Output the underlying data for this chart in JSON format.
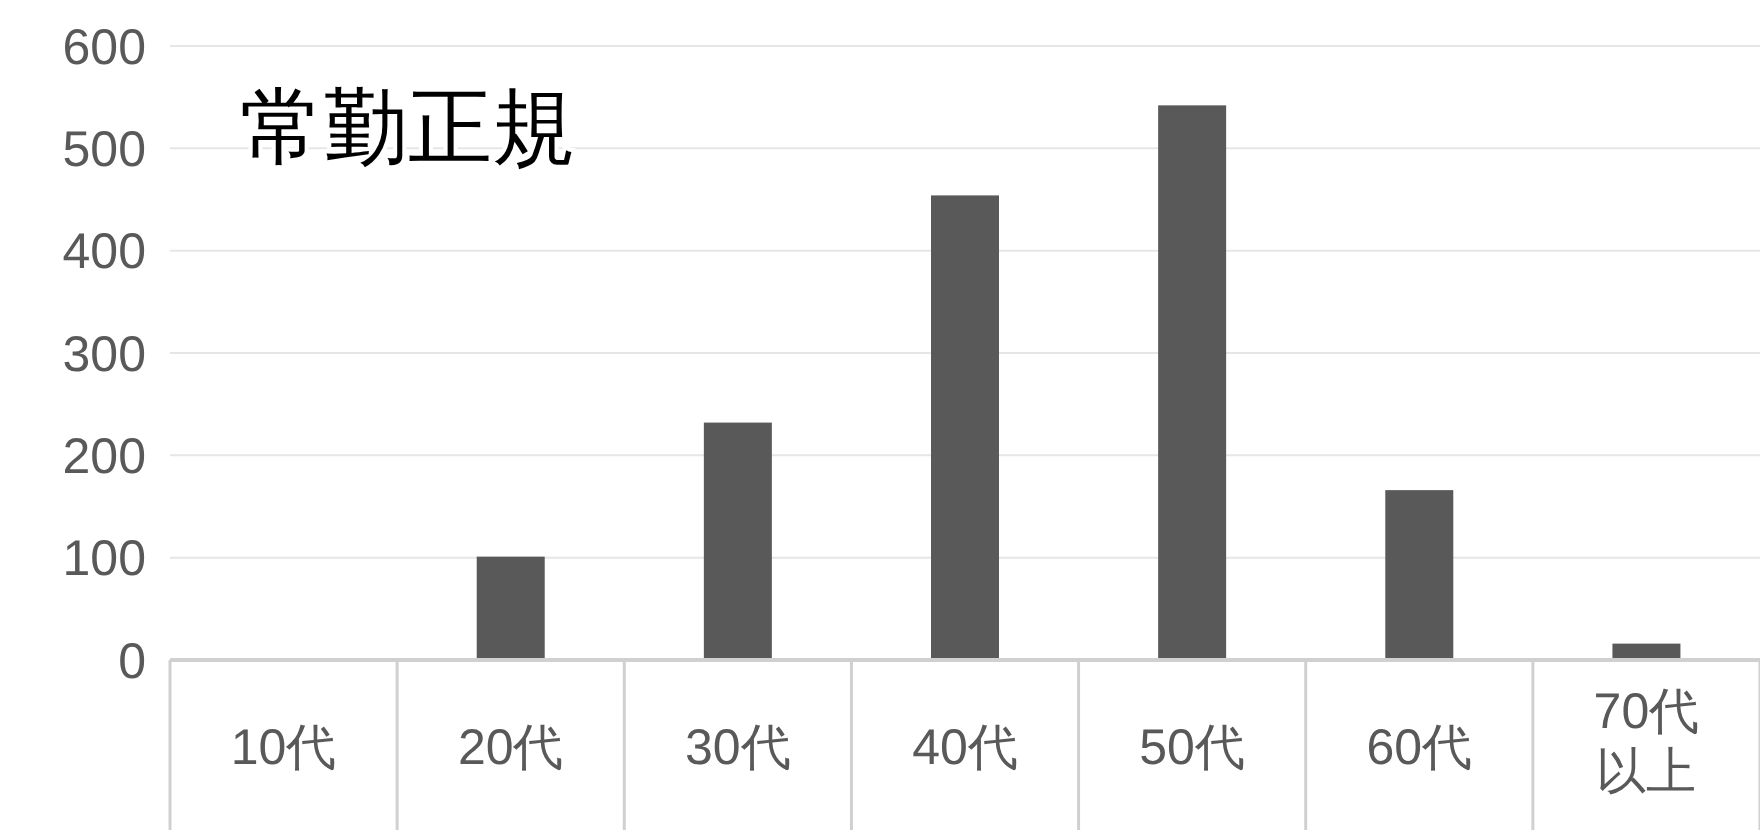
{
  "chart_data": {
    "type": "bar",
    "title": "常勤正規",
    "categories": [
      "10代",
      "20代",
      "30代",
      "40代",
      "50代",
      "60代",
      "70代以上"
    ],
    "values": [
      0,
      101,
      232,
      454,
      542,
      166,
      16
    ],
    "color": "#595959",
    "ylim": [
      0,
      600
    ],
    "yticks": [
      0,
      100,
      200,
      300,
      400,
      500,
      600
    ],
    "grid": "y"
  }
}
